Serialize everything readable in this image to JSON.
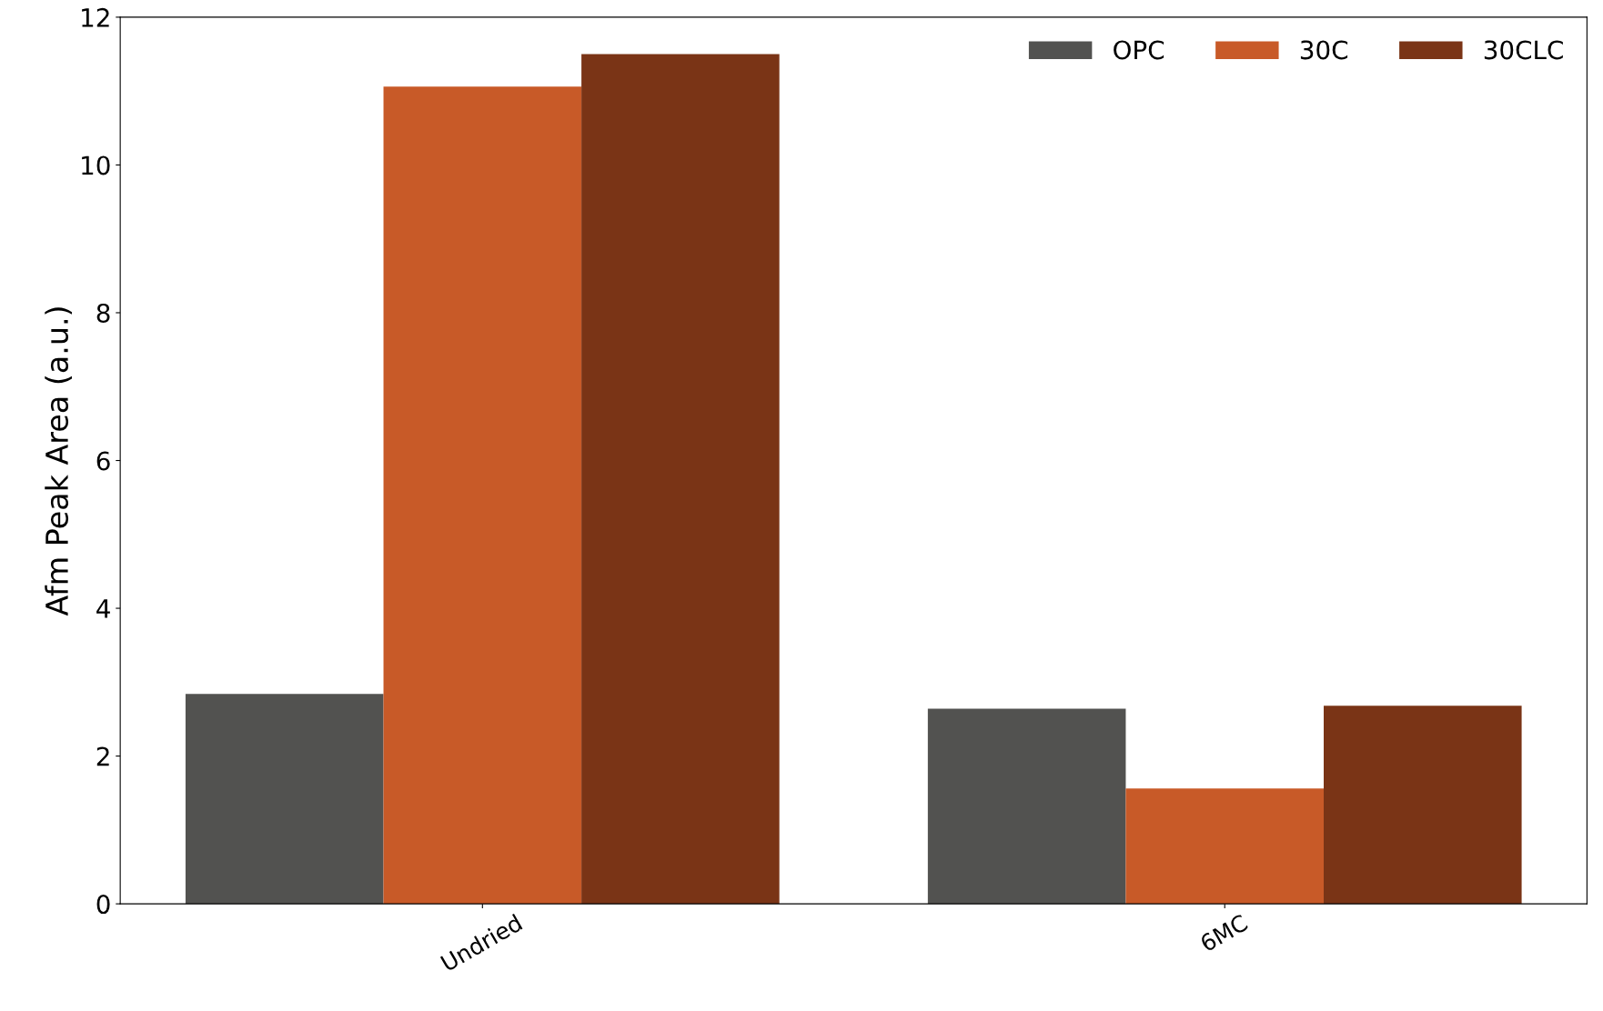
{
  "chart_data": {
    "type": "bar",
    "ylabel": "Afm Peak Area (a.u.)",
    "categories": [
      "Undried",
      "6MC"
    ],
    "series": [
      {
        "name": "OPC",
        "color": "#525250",
        "values": [
          2.84,
          2.64
        ]
      },
      {
        "name": "30C",
        "color": "#c85a28",
        "values": [
          11.06,
          1.56
        ]
      },
      {
        "name": "30CLC",
        "color": "#7a3416",
        "values": [
          11.5,
          2.68
        ]
      }
    ],
    "ylim": [
      0,
      12
    ],
    "yticks": [
      0,
      2,
      4,
      6,
      8,
      10,
      12
    ],
    "legend": "top right",
    "grid": false
  }
}
